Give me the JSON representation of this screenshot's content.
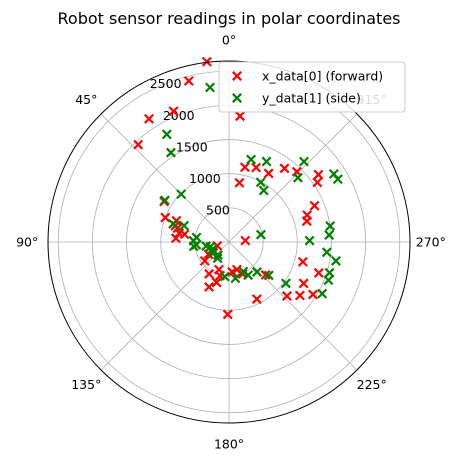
{
  "chart_data": {
    "type": "scatter",
    "projection": "polar",
    "title": "Robot sensor readings in polar coordinates",
    "theta_zero": "top",
    "theta_direction": "counterclockwise",
    "angle_ticks": [
      "0°",
      "45°",
      "90°",
      "135°",
      "180°",
      "225°",
      "270°",
      "315°"
    ],
    "radial_ticks": [
      "500",
      "1000",
      "1500",
      "2000",
      "2500"
    ],
    "rlim": [
      0,
      2650
    ],
    "grid": true,
    "legend": {
      "placement": "top-right"
    },
    "series": [
      {
        "name": "x_data[0] (forward)",
        "color": "#ff0000",
        "marker": "x",
        "points": [
          {
            "theta": 7,
            "r": 2660
          },
          {
            "theta": 14,
            "r": 2430
          },
          {
            "theta": 23,
            "r": 2080
          },
          {
            "theta": 33,
            "r": 2150
          },
          {
            "theta": 43,
            "r": 1950
          },
          {
            "theta": 58,
            "r": 1120
          },
          {
            "theta": 68,
            "r": 830
          },
          {
            "theta": 69,
            "r": 1000
          },
          {
            "theta": 73,
            "r": 820
          },
          {
            "theta": 75,
            "r": 780
          },
          {
            "theta": 80,
            "r": 740
          },
          {
            "theta": 86,
            "r": 780
          },
          {
            "theta": 80,
            "r": 660
          },
          {
            "theta": 108,
            "r": 180
          },
          {
            "theta": 117,
            "r": 260
          },
          {
            "theta": 120,
            "r": 280
          },
          {
            "theta": 121,
            "r": 350
          },
          {
            "theta": 128,
            "r": 450
          },
          {
            "theta": 148,
            "r": 550
          },
          {
            "theta": 156,
            "r": 720
          },
          {
            "theta": 160,
            "r": 430
          },
          {
            "theta": 163,
            "r": 620
          },
          {
            "theta": 165,
            "r": 510
          },
          {
            "theta": 179,
            "r": 1060
          },
          {
            "theta": 186,
            "r": 440
          },
          {
            "theta": 196,
            "r": 420
          },
          {
            "theta": 203,
            "r": 510
          },
          {
            "theta": 206,
            "r": 930
          },
          {
            "theta": 227,
            "r": 1160
          },
          {
            "theta": 228,
            "r": 720
          },
          {
            "theta": 233,
            "r": 1300
          },
          {
            "theta": 238,
            "r": 1450
          },
          {
            "theta": 241,
            "r": 1250
          },
          {
            "theta": 251,
            "r": 1390
          },
          {
            "theta": 255,
            "r": 1120
          },
          {
            "theta": 275,
            "r": 240
          },
          {
            "theta": 285,
            "r": 1180
          },
          {
            "theta": 289,
            "r": 1210
          },
          {
            "theta": 293,
            "r": 1360
          },
          {
            "theta": 304,
            "r": 1560
          },
          {
            "theta": 307,
            "r": 1640
          },
          {
            "theta": 316,
            "r": 1430
          },
          {
            "theta": 323,
            "r": 1350
          },
          {
            "theta": 330,
            "r": 1160
          },
          {
            "theta": 340,
            "r": 1160
          },
          {
            "theta": 348,
            "r": 1120
          },
          {
            "theta": 350,
            "r": 880
          },
          {
            "theta": 355,
            "r": 1850
          }
        ]
      },
      {
        "name": "y_data[1] (side)",
        "color": "#008000",
        "marker": "x",
        "points": [
          {
            "theta": 7,
            "r": 2280
          },
          {
            "theta": 30,
            "r": 1820
          },
          {
            "theta": 33,
            "r": 1560
          },
          {
            "theta": 45,
            "r": 990
          },
          {
            "theta": 57,
            "r": 1120
          },
          {
            "theta": 70,
            "r": 700
          },
          {
            "theta": 72,
            "r": 860
          },
          {
            "theta": 82,
            "r": 480
          },
          {
            "theta": 88,
            "r": 520
          },
          {
            "theta": 95,
            "r": 480
          },
          {
            "theta": 97,
            "r": 520
          },
          {
            "theta": 100,
            "r": 340
          },
          {
            "theta": 104,
            "r": 280
          },
          {
            "theta": 114,
            "r": 270
          },
          {
            "theta": 125,
            "r": 280
          },
          {
            "theta": 140,
            "r": 250
          },
          {
            "theta": 145,
            "r": 290
          },
          {
            "theta": 173,
            "r": 510
          },
          {
            "theta": 190,
            "r": 540
          },
          {
            "theta": 206,
            "r": 480
          },
          {
            "theta": 210,
            "r": 560
          },
          {
            "theta": 223,
            "r": 600
          },
          {
            "theta": 230,
            "r": 760
          },
          {
            "theta": 234,
            "r": 1030
          },
          {
            "theta": 241,
            "r": 1560
          },
          {
            "theta": 249,
            "r": 1560
          },
          {
            "theta": 253,
            "r": 1540
          },
          {
            "theta": 260,
            "r": 1590
          },
          {
            "theta": 264,
            "r": 1440
          },
          {
            "theta": 271,
            "r": 1180
          },
          {
            "theta": 274,
            "r": 1470
          },
          {
            "theta": 279,
            "r": 1500
          },
          {
            "theta": 283,
            "r": 480
          },
          {
            "theta": 300,
            "r": 1840
          },
          {
            "theta": 303,
            "r": 1830
          },
          {
            "theta": 313,
            "r": 1380
          },
          {
            "theta": 317,
            "r": 1610
          },
          {
            "theta": 326,
            "r": 910
          },
          {
            "theta": 332,
            "r": 990
          },
          {
            "theta": 335,
            "r": 1300
          },
          {
            "theta": 345,
            "r": 1250
          }
        ]
      }
    ]
  }
}
